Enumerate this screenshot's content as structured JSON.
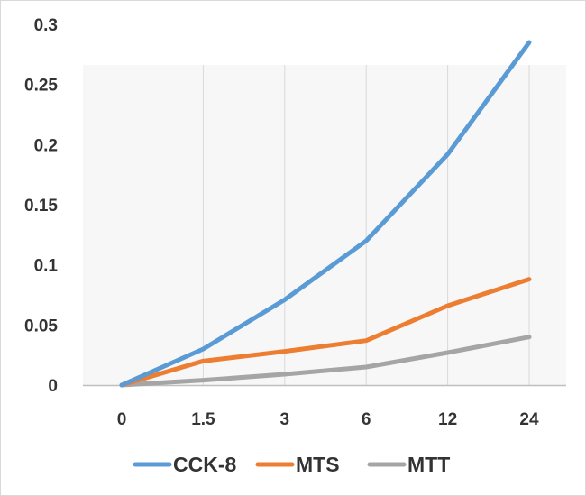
{
  "chart_data": {
    "type": "line",
    "title": "",
    "xlabel": "",
    "ylabel": "",
    "categories": [
      "0",
      "1.5",
      "3",
      "6",
      "12",
      "24"
    ],
    "ylim": [
      0,
      0.3
    ],
    "y_ticks": [
      "0",
      "0.05",
      "0.1",
      "0.15",
      "0.2",
      "0.25",
      "0.3"
    ],
    "grid": "vertical lines at categories",
    "legend_position": "bottom",
    "series": [
      {
        "name": "CCK-8",
        "color": "#5b9bd5",
        "values": [
          0,
          0.03,
          0.071,
          0.12,
          0.192,
          0.285
        ]
      },
      {
        "name": "MTS",
        "color": "#ed7d31",
        "values": [
          0,
          0.02,
          0.028,
          0.037,
          0.066,
          0.088
        ]
      },
      {
        "name": "MTT",
        "color": "#a5a5a5",
        "values": [
          0,
          0.004,
          0.009,
          0.015,
          0.027,
          0.04
        ]
      }
    ]
  }
}
